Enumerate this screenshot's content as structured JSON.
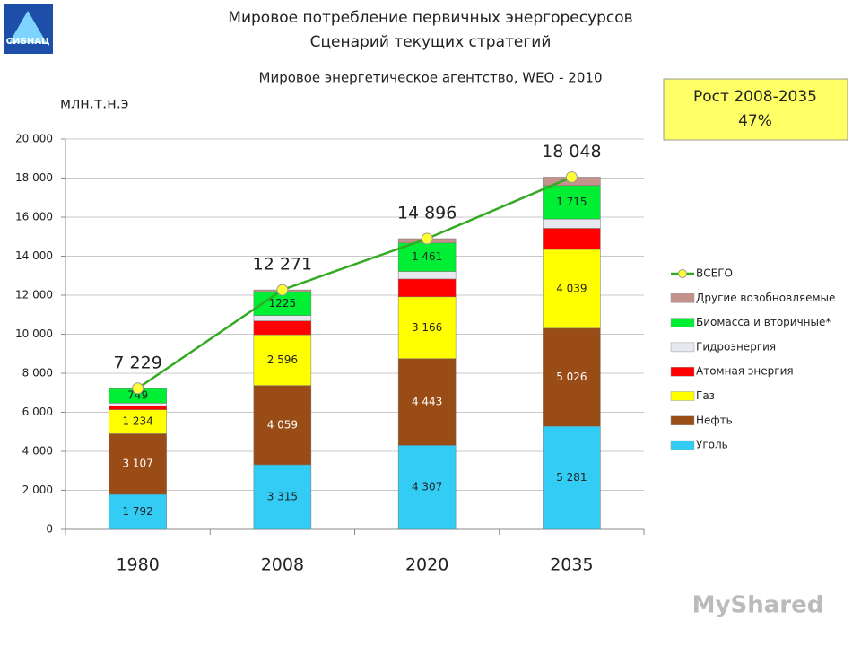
{
  "chart_data": {
    "type": "bar",
    "stacked": true,
    "title": "Мировое потребление первичных энергоресурсов",
    "subtitle": "Сценарий текущих стратегий",
    "source": "Мировое энергетическое агентство, WEO - 2010",
    "y_label": "млн.т.н.э",
    "note_box": {
      "title": "Рост 2008-2035",
      "value": "47%"
    },
    "logo": "СИБНАЦ",
    "watermark": "MyShared",
    "categories": [
      "1980",
      "2008",
      "2020",
      "2035"
    ],
    "ylim": [
      0,
      20000
    ],
    "yticks": [
      0,
      {
        "value": 2000,
        "label": "2 000"
      },
      {
        "value": 4000,
        "label": "4 000"
      },
      {
        "value": 6000,
        "label": "6 000"
      },
      {
        "value": 8000,
        "label": "8 000"
      },
      {
        "value": 10000,
        "label": "10 000"
      },
      {
        "value": 12000,
        "label": "12 000"
      },
      {
        "value": 14000,
        "label": "14 000"
      },
      {
        "value": 16000,
        "label": "16 000"
      },
      {
        "value": 18000,
        "label": "18 000"
      },
      {
        "value": 20000,
        "label": "20 000"
      }
    ],
    "grid": true,
    "legend": "right",
    "series": [
      {
        "name": "Уголь",
        "color": "#33ccf5",
        "label_color": "#222",
        "values": [
          1792,
          3315,
          4307,
          5281
        ],
        "value_labels": [
          "1 792",
          "3 315",
          "4 307",
          "5 281"
        ]
      },
      {
        "name": "Нефть",
        "color": "#9a4c17",
        "label_color": "#fff",
        "values": [
          3107,
          4059,
          4443,
          5026
        ],
        "value_labels": [
          "3 107",
          "4 059",
          "4 443",
          "5 026"
        ]
      },
      {
        "name": "Газ",
        "color": "#ffff00",
        "label_color": "#222",
        "values": [
          1234,
          2596,
          3166,
          4039
        ],
        "value_labels": [
          "1 234",
          "2 596",
          "3 166",
          "4 039"
        ]
      },
      {
        "name": "Атомная энергия",
        "color": "#ff0000",
        "label_color": "#fff",
        "values": [
          186,
          712,
          915,
          1081
        ]
      },
      {
        "name": "Гидроэнергия",
        "color": "#e8e8f0",
        "values": [
          148,
          276,
          386,
          476
        ]
      },
      {
        "name": "Биомасса и вторичные*",
        "color": "#00ee33",
        "label_color": "#222",
        "values": [
          749,
          1225,
          1461,
          1715
        ],
        "value_labels": [
          "749",
          "1225",
          "1 461",
          "1 715"
        ]
      },
      {
        "name": "Другие возобновляемые",
        "color": "#c4928a",
        "values": [
          12,
          89,
          218,
          430
        ]
      },
      {
        "name": "ВСЕГО",
        "type": "line",
        "color": "#33aa22",
        "marker_color": "#ffff33",
        "values": [
          7229,
          12271,
          14896,
          18048
        ],
        "value_labels": [
          "7 229",
          "12 271",
          "14 896",
          "18 048"
        ]
      }
    ]
  }
}
